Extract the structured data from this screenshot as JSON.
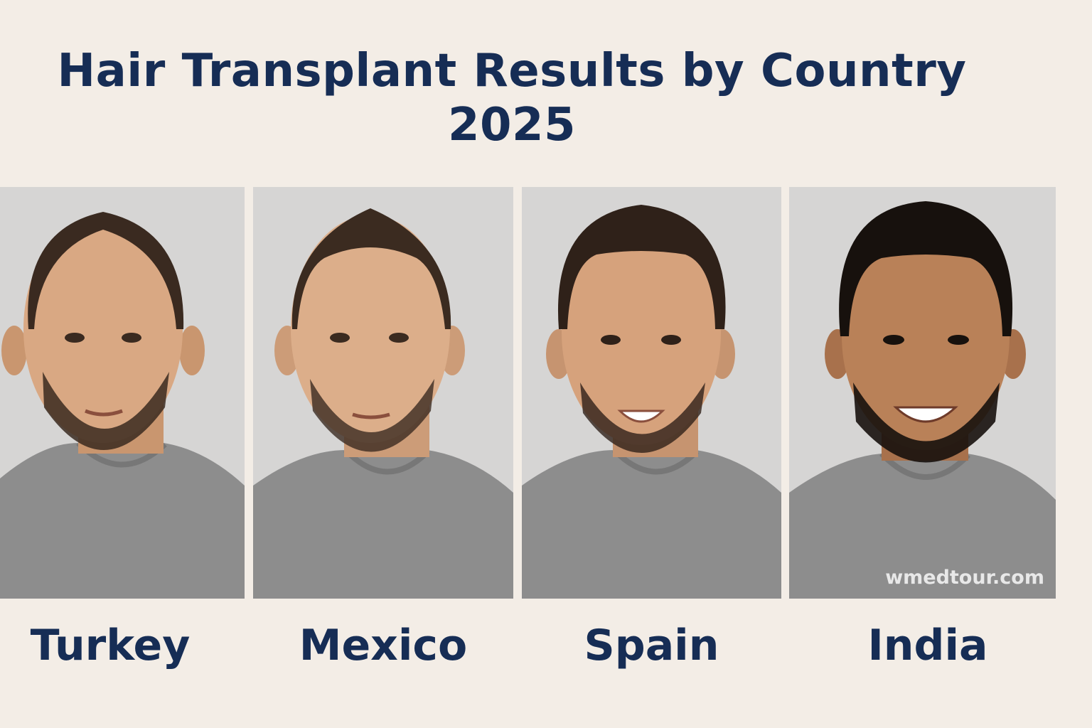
{
  "title": {
    "line1": "Hair Transplant Results by Country",
    "line2": "2025"
  },
  "panels": [
    {
      "country": "Turkey",
      "hair": "thinning-crown",
      "skin": "#d9a883",
      "hairColor": "#3a2a20"
    },
    {
      "country": "Mexico",
      "hair": "receding-bald",
      "skin": "#dcae8a",
      "hairColor": "#3b2b20"
    },
    {
      "country": "Spain",
      "hair": "full",
      "skin": "#d6a27c",
      "hairColor": "#2f2119"
    },
    {
      "country": "India",
      "hair": "full-dark",
      "skin": "#b98158",
      "hairColor": "#17110d"
    }
  ],
  "watermark": "wmedtour.com",
  "colors": {
    "background": "#f3ede6",
    "text": "#162d55",
    "backdrop": "#d6d5d4",
    "shirt": "#8d8d8d"
  }
}
